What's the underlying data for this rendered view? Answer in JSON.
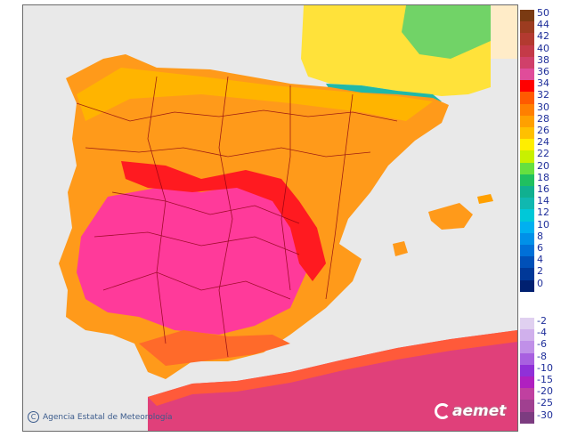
{
  "map": {
    "credit": "Agencia Estatal de Meteorología",
    "logo_text": "aemet"
  },
  "legend": {
    "positive": [
      {
        "label": "50",
        "color": "#7a3a12"
      },
      {
        "label": "44",
        "color": "#9c3c20"
      },
      {
        "label": "42",
        "color": "#b33a30"
      },
      {
        "label": "40",
        "color": "#c43a48"
      },
      {
        "label": "38",
        "color": "#d0406a"
      },
      {
        "label": "36",
        "color": "#e04c9a"
      },
      {
        "label": "34",
        "color": "#ff0000"
      },
      {
        "label": "32",
        "color": "#ff5a00"
      },
      {
        "label": "30",
        "color": "#ff7f00"
      },
      {
        "label": "28",
        "color": "#ffa000"
      },
      {
        "label": "26",
        "color": "#ffc000"
      },
      {
        "label": "24",
        "color": "#ffee00"
      },
      {
        "label": "22",
        "color": "#c8f000"
      },
      {
        "label": "20",
        "color": "#66e040"
      },
      {
        "label": "18",
        "color": "#20c060"
      },
      {
        "label": "16",
        "color": "#10b090"
      },
      {
        "label": "14",
        "color": "#10b8b0"
      },
      {
        "label": "12",
        "color": "#00c8d8"
      },
      {
        "label": "10",
        "color": "#00b0f0"
      },
      {
        "label": "8",
        "color": "#0090e8"
      },
      {
        "label": "6",
        "color": "#0070d8"
      },
      {
        "label": "4",
        "color": "#0050b8"
      },
      {
        "label": "2",
        "color": "#003898"
      },
      {
        "label": "0",
        "color": "#002070"
      }
    ],
    "negative": [
      {
        "label": "-2",
        "color": "#e0d0f0"
      },
      {
        "label": "-4",
        "color": "#d0b0ec"
      },
      {
        "label": "-6",
        "color": "#c090e8"
      },
      {
        "label": "-8",
        "color": "#a860e0"
      },
      {
        "label": "-10",
        "color": "#9030d8"
      },
      {
        "label": "-15",
        "color": "#b020c0"
      },
      {
        "label": "-20",
        "color": "#c040a0"
      },
      {
        "label": "-25",
        "color": "#a04090"
      },
      {
        "label": "-30",
        "color": "#7c3c80"
      }
    ]
  }
}
